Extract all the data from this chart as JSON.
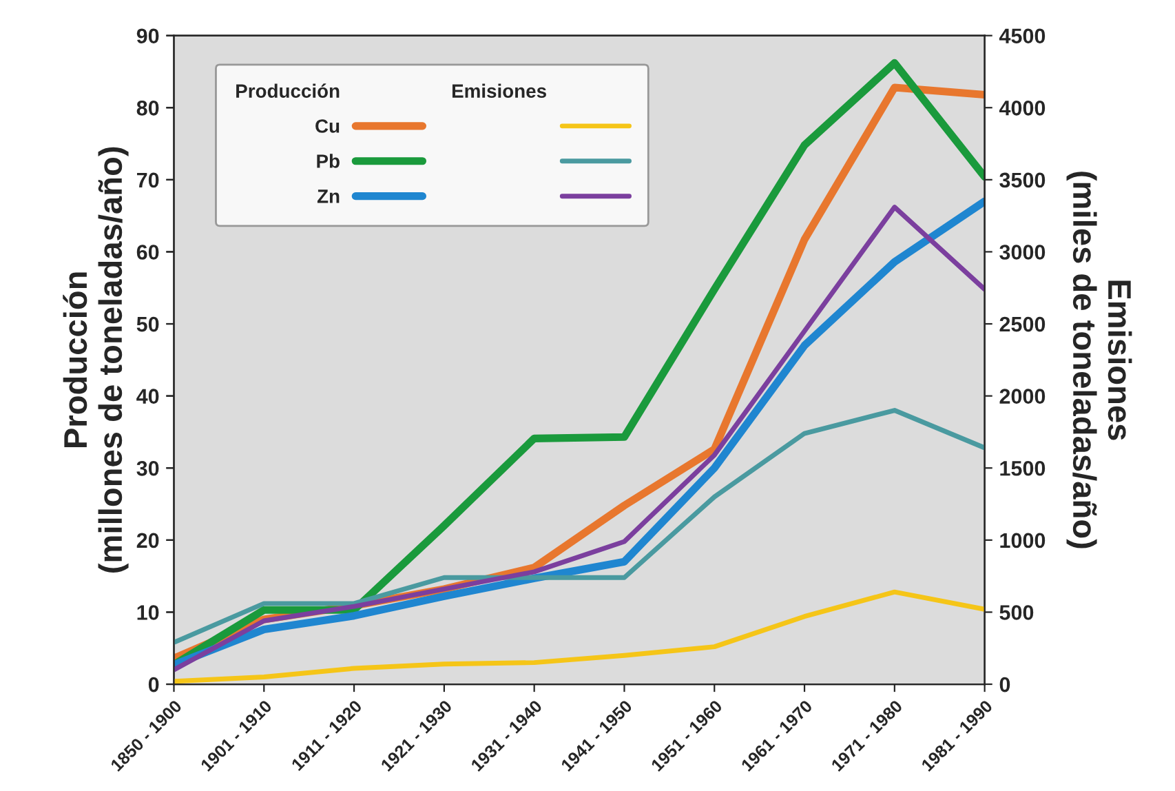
{
  "chart_data": {
    "type": "line",
    "xlabel": null,
    "ylabel": "Producción\n(millones de toneladas/año)",
    "y2label": "Emisiones\n(miles de toneladas/año)",
    "categories": [
      "1850 - 1900",
      "1901 - 1910",
      "1911 - 1920",
      "1921 - 1930",
      "1931 - 1940",
      "1941 - 1950",
      "1951 - 1960",
      "1961 - 1970",
      "1971 - 1980",
      "1981 - 1990"
    ],
    "series": [
      {
        "name": "Cu",
        "color": "#e8772e",
        "values": [
          3.6,
          9,
          10.9,
          13.2,
          16.2,
          24.8,
          32.6,
          61.7,
          82.8,
          81.8
        ]
      },
      {
        "name": "Pb",
        "color": "#1a9a3c",
        "values": [
          2.7,
          10.3,
          10.3,
          22,
          34.1,
          34.3,
          54.8,
          74.8,
          86.2,
          70.4
        ]
      },
      {
        "name": "Zn",
        "color": "#1f86d0",
        "values": [
          2.7,
          7.6,
          9.5,
          12.2,
          14.7,
          17,
          30,
          47,
          58.6,
          67
        ]
      },
      {
        "color": "#f5c518",
        "axis": "y2",
        "values": [
          20,
          50,
          110,
          140,
          150,
          200,
          260,
          470,
          640,
          520
        ]
      },
      {
        "color": "#4a9aa0",
        "axis": "y2",
        "values": [
          290,
          560,
          560,
          740,
          740,
          740,
          1300,
          1740,
          1900,
          1640
        ]
      },
      {
        "color": "#7b3f9e",
        "axis": "y2",
        "values": [
          100,
          440,
          540,
          660,
          780,
          990,
          1590,
          2450,
          3310,
          2740
        ]
      }
    ],
    "annotations": [
      "Producción",
      "Emisiones"
    ],
    "ylim": [
      0,
      90
    ],
    "yticks": [
      0,
      10,
      20,
      30,
      40,
      50,
      60,
      70,
      80,
      90
    ],
    "y2lim": [
      0,
      4500
    ],
    "y2ticks": [
      0,
      500,
      1000,
      1500,
      2000,
      2500,
      3000,
      3500,
      4000,
      4500
    ],
    "grid": false,
    "legend": "top left",
    "marker": "none",
    "line_style": "solid"
  }
}
